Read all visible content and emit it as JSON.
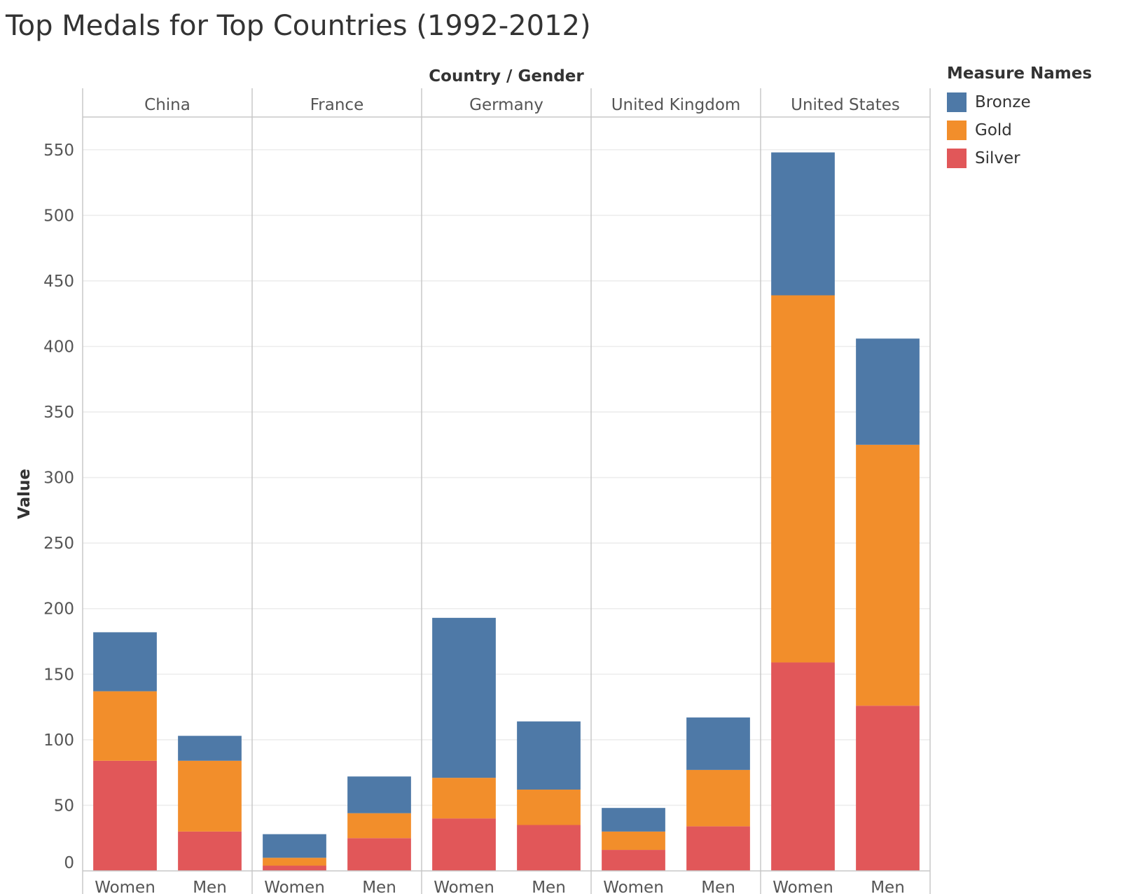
{
  "title": "Top Medals for Top Countries (1992-2012)",
  "legend": {
    "title": "Measure Names",
    "items": [
      {
        "label": "Bronze",
        "color": "#4e79a7"
      },
      {
        "label": "Gold",
        "color": "#f28e2b"
      },
      {
        "label": "Silver",
        "color": "#e15759"
      }
    ]
  },
  "chart_data": {
    "type": "bar",
    "stacked": true,
    "header_title": "Country / Gender",
    "ylabel": "Value",
    "ylim": [
      0,
      575
    ],
    "yticks": [
      0,
      50,
      100,
      150,
      200,
      250,
      300,
      350,
      400,
      450,
      500,
      550
    ],
    "stack_order": [
      "Silver",
      "Gold",
      "Bronze"
    ],
    "groups": [
      {
        "country": "China",
        "bars": [
          {
            "gender": "Women",
            "Silver": 84,
            "Gold": 53,
            "Bronze": 45
          },
          {
            "gender": "Men",
            "Silver": 30,
            "Gold": 54,
            "Bronze": 19
          }
        ]
      },
      {
        "country": "France",
        "bars": [
          {
            "gender": "Women",
            "Silver": 4,
            "Gold": 6,
            "Bronze": 18
          },
          {
            "gender": "Men",
            "Silver": 25,
            "Gold": 19,
            "Bronze": 28
          }
        ]
      },
      {
        "country": "Germany",
        "bars": [
          {
            "gender": "Women",
            "Silver": 40,
            "Gold": 31,
            "Bronze": 122
          },
          {
            "gender": "Men",
            "Silver": 35,
            "Gold": 27,
            "Bronze": 52
          }
        ]
      },
      {
        "country": "United Kingdom",
        "bars": [
          {
            "gender": "Women",
            "Silver": 16,
            "Gold": 14,
            "Bronze": 18
          },
          {
            "gender": "Men",
            "Silver": 34,
            "Gold": 43,
            "Bronze": 40
          }
        ]
      },
      {
        "country": "United States",
        "bars": [
          {
            "gender": "Women",
            "Silver": 159,
            "Gold": 280,
            "Bronze": 109
          },
          {
            "gender": "Men",
            "Silver": 126,
            "Gold": 199,
            "Bronze": 81
          }
        ]
      }
    ],
    "grid": true,
    "legend_position": "right"
  }
}
